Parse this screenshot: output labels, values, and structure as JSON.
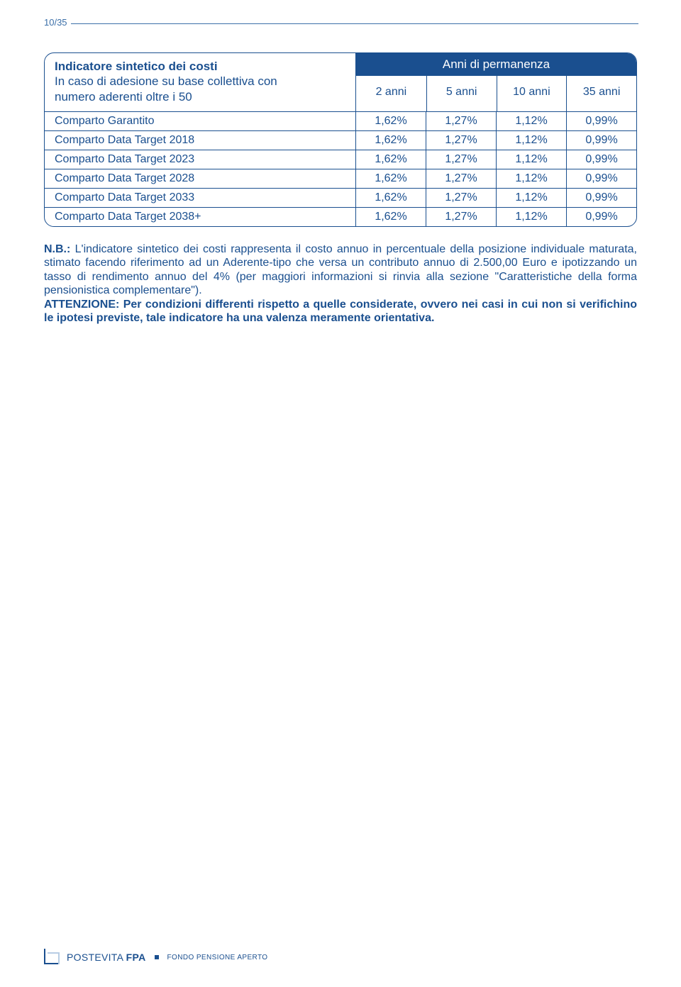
{
  "page_number": "10/35",
  "colors": {
    "primary": "#1a4f8f",
    "rule": "#3b6fa8",
    "light": "#b8cde4",
    "background": "#ffffff"
  },
  "table": {
    "title": "Indicatore sintetico dei costi",
    "subtitle_line1": "In caso di adesione su base collettiva con",
    "subtitle_line2": "numero aderenti oltre i 50",
    "column_group_title": "Anni di permanenza",
    "columns": [
      "2 anni",
      "5 anni",
      "10 anni",
      "35 anni"
    ],
    "rows": [
      {
        "label": "Comparto Garantito",
        "values": [
          "1,62%",
          "1,27%",
          "1,12%",
          "0,99%"
        ]
      },
      {
        "label": "Comparto Data Target 2018",
        "values": [
          "1,62%",
          "1,27%",
          "1,12%",
          "0,99%"
        ]
      },
      {
        "label": "Comparto Data Target 2023",
        "values": [
          "1,62%",
          "1,27%",
          "1,12%",
          "0,99%"
        ]
      },
      {
        "label": "Comparto Data Target 2028",
        "values": [
          "1,62%",
          "1,27%",
          "1,12%",
          "0,99%"
        ]
      },
      {
        "label": "Comparto Data Target 2033",
        "values": [
          "1,62%",
          "1,27%",
          "1,12%",
          "0,99%"
        ]
      },
      {
        "label": "Comparto Data Target 2038+",
        "values": [
          "1,62%",
          "1,27%",
          "1,12%",
          "0,99%"
        ]
      }
    ]
  },
  "note": {
    "prefix_bold": "N.B.:",
    "para1_rest": " L'indicatore sintetico dei costi rappresenta il costo annuo in percentuale della posizione individuale maturata, stimato facendo riferimento ad un Aderente-tipo che versa un contributo annuo di 2.500,00 Euro e ipotizzando un tasso di rendimento annuo del 4% (per maggiori informazioni si rinvia alla sezione \"Caratteristiche della forma pensionistica complementare\").",
    "attention_bold": "ATTENZIONE: Per condizioni differenti rispetto a quelle considerate, ovvero nei casi in cui non si verifichino le ipotesi previste, tale indicatore ha una valenza meramente orientativa."
  },
  "footer": {
    "brand_thin": "POSTEVITA ",
    "brand_bold": "FPA",
    "tagline": "FONDO PENSIONE APERTO"
  }
}
